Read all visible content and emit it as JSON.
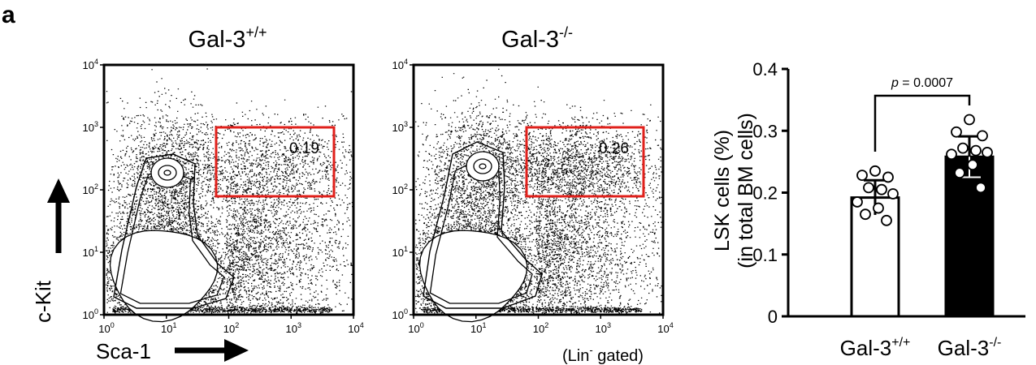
{
  "panel_label": "a",
  "flow_plots": [
    {
      "title_base": "Gal-3",
      "title_sup": "+/+",
      "gate_value": "0.19",
      "note_base": "",
      "note_sup": "",
      "note_tail": ""
    },
    {
      "title_base": "Gal-3",
      "title_sup": "-/-",
      "gate_value": "0.26",
      "note_base": "(Lin",
      "note_sup": "-",
      "note_tail": " gated)"
    }
  ],
  "flow_axes": {
    "y_label": "c-Kit",
    "x_label": "Sca-1",
    "tick_base": "10",
    "tick_exponents": [
      "0",
      "1",
      "2",
      "3",
      "4"
    ]
  },
  "colors": {
    "gate": "#e0201b",
    "ink": "#000000",
    "bar_wt": "#ffffff",
    "bar_ko": "#000000"
  },
  "chart_data": {
    "type": "bar",
    "ylabel_line1": "LSK cells (%)",
    "ylabel_line2": "(in total BM cells)",
    "ylim": [
      0,
      0.4
    ],
    "y_ticks": [
      "0",
      "0.1",
      "0.2",
      "0.3",
      "0.4"
    ],
    "y_tick_values": [
      0,
      0.1,
      0.2,
      0.3,
      0.4
    ],
    "categories": [
      {
        "base": "Gal-3",
        "sup": "+/+"
      },
      {
        "base": "Gal-3",
        "sup": "-/-"
      }
    ],
    "series": [
      {
        "values": [
          0.192,
          0.258
        ],
        "errors": [
          0.028,
          0.033
        ],
        "points": [
          [
            0.235,
            0.228,
            0.225,
            0.208,
            0.205,
            0.198,
            0.185,
            0.175,
            0.165,
            0.155
          ],
          [
            0.318,
            0.298,
            0.292,
            0.272,
            0.268,
            0.265,
            0.262,
            0.245,
            0.232,
            0.208
          ]
        ]
      }
    ],
    "annotation": {
      "p_label": "p",
      "p_text": " = 0.0007"
    }
  }
}
